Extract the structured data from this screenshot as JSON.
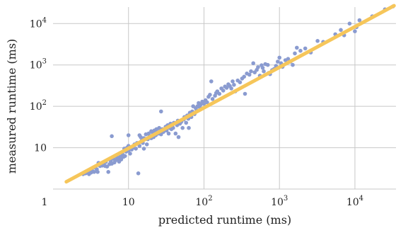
{
  "chart_data": {
    "type": "scatter",
    "xlabel": "predicted runtime (ms)",
    "ylabel": "measured runtime (ms)",
    "xscale": "log",
    "yscale": "log",
    "xlim": [
      1,
      35000
    ],
    "ylim": [
      1,
      25000
    ],
    "grid": true,
    "colors": {
      "points": "#8a9bd0",
      "fit_line": "#f6c65a",
      "grid": "#c8c8c8"
    },
    "x_ticks": [
      {
        "label": "1",
        "value": 1
      },
      {
        "label": "10",
        "value": 10
      },
      {
        "label": "10",
        "sup": "2",
        "value": 100
      },
      {
        "label": "10",
        "sup": "3",
        "value": 1000
      },
      {
        "label": "10",
        "sup": "4",
        "value": 10000
      }
    ],
    "y_ticks": [
      {
        "label": "10",
        "sup": "",
        "value": 10
      },
      {
        "label": "10",
        "sup": "2",
        "value": 100
      },
      {
        "label": "10",
        "sup": "3",
        "value": 1000
      },
      {
        "label": "10",
        "sup": "4",
        "value": 10000
      }
    ],
    "fit_line": {
      "x": [
        1.5,
        33000
      ],
      "y": [
        1.5,
        27000
      ]
    },
    "series": [
      {
        "points": [
          [
            2.5,
            2.3
          ],
          [
            2.7,
            2.4
          ],
          [
            2.9,
            2.6
          ],
          [
            3.0,
            2.3
          ],
          [
            3.2,
            2.5
          ],
          [
            3.3,
            2.8
          ],
          [
            3.5,
            2.6
          ],
          [
            3.6,
            3.3
          ],
          [
            3.8,
            3.0
          ],
          [
            3.9,
            2.6
          ],
          [
            4.0,
            4.3
          ],
          [
            4.2,
            3.6
          ],
          [
            4.3,
            4.0
          ],
          [
            4.5,
            3.7
          ],
          [
            4.7,
            4.1
          ],
          [
            4.9,
            3.6
          ],
          [
            5.0,
            4.5
          ],
          [
            5.2,
            3.5
          ],
          [
            5.4,
            2.6
          ],
          [
            5.6,
            4.0
          ],
          [
            5.8,
            4.8
          ],
          [
            6.0,
            4.1
          ],
          [
            6.0,
            19
          ],
          [
            6.3,
            5.4
          ],
          [
            6.5,
            4.4
          ],
          [
            6.8,
            5.0
          ],
          [
            7.0,
            6.0
          ],
          [
            7.3,
            5.2
          ],
          [
            7.5,
            4.6
          ],
          [
            7.8,
            6.0
          ],
          [
            8.0,
            5.2
          ],
          [
            8.3,
            7.0
          ],
          [
            8.6,
            6.0
          ],
          [
            8.8,
            9.5
          ],
          [
            9.0,
            6.3
          ],
          [
            9.3,
            8.0
          ],
          [
            9.6,
            10
          ],
          [
            10,
            8.5
          ],
          [
            10,
            20
          ],
          [
            10,
            11
          ],
          [
            10.5,
            7.2
          ],
          [
            11,
            9.0
          ],
          [
            11.5,
            10
          ],
          [
            12,
            12
          ],
          [
            12.5,
            9.5
          ],
          [
            13,
            13
          ],
          [
            13.5,
            2.4
          ],
          [
            14,
            11
          ],
          [
            14,
            20
          ],
          [
            14.5,
            18
          ],
          [
            15,
            15
          ],
          [
            15.5,
            13
          ],
          [
            16,
            17
          ],
          [
            16,
            9.5
          ],
          [
            17,
            21
          ],
          [
            17.5,
            12
          ],
          [
            18,
            16
          ],
          [
            18.5,
            22
          ],
          [
            19,
            19
          ],
          [
            20,
            17
          ],
          [
            20,
            25
          ],
          [
            21,
            22
          ],
          [
            21.5,
            18
          ],
          [
            22,
            26
          ],
          [
            23,
            20
          ],
          [
            23.5,
            28
          ],
          [
            24,
            23
          ],
          [
            25,
            22
          ],
          [
            25.5,
            30
          ],
          [
            26,
            25
          ],
          [
            27,
            21
          ],
          [
            27,
            75
          ],
          [
            28,
            28
          ],
          [
            29,
            24
          ],
          [
            30,
            27
          ],
          [
            31,
            32
          ],
          [
            32,
            26
          ],
          [
            33,
            35
          ],
          [
            34,
            22
          ],
          [
            35,
            30
          ],
          [
            36,
            38
          ],
          [
            37,
            28
          ],
          [
            38,
            33
          ],
          [
            39,
            30
          ],
          [
            40,
            40
          ],
          [
            42,
            22
          ],
          [
            44,
            35
          ],
          [
            45,
            45
          ],
          [
            46,
            18
          ],
          [
            48,
            38
          ],
          [
            50,
            42
          ],
          [
            52,
            30
          ],
          [
            54,
            48
          ],
          [
            55,
            55
          ],
          [
            58,
            40
          ],
          [
            60,
            60
          ],
          [
            62,
            50
          ],
          [
            63,
            30
          ],
          [
            65,
            70
          ],
          [
            68,
            55
          ],
          [
            70,
            75
          ],
          [
            72,
            100
          ],
          [
            75,
            65
          ],
          [
            78,
            90
          ],
          [
            80,
            80
          ],
          [
            82,
            100
          ],
          [
            85,
            120
          ],
          [
            88,
            95
          ],
          [
            90,
            110
          ],
          [
            95,
            130
          ],
          [
            100,
            115
          ],
          [
            105,
            140
          ],
          [
            110,
            125
          ],
          [
            115,
            170
          ],
          [
            120,
            190
          ],
          [
            125,
            400
          ],
          [
            130,
            150
          ],
          [
            140,
            180
          ],
          [
            145,
            210
          ],
          [
            150,
            230
          ],
          [
            160,
            200
          ],
          [
            170,
            270
          ],
          [
            180,
            240
          ],
          [
            190,
            300
          ],
          [
            200,
            280
          ],
          [
            210,
            340
          ],
          [
            220,
            310
          ],
          [
            230,
            270
          ],
          [
            240,
            400
          ],
          [
            250,
            330
          ],
          [
            260,
            230
          ],
          [
            280,
            420
          ],
          [
            300,
            380
          ],
          [
            320,
            470
          ],
          [
            340,
            520
          ],
          [
            350,
            200
          ],
          [
            370,
            620
          ],
          [
            400,
            580
          ],
          [
            420,
            700
          ],
          [
            450,
            1100
          ],
          [
            470,
            660
          ],
          [
            500,
            760
          ],
          [
            520,
            880
          ],
          [
            550,
            550
          ],
          [
            580,
            980
          ],
          [
            600,
            850
          ],
          [
            620,
            700
          ],
          [
            650,
            1050
          ],
          [
            700,
            1000
          ],
          [
            720,
            640
          ],
          [
            750,
            600
          ],
          [
            800,
            750
          ],
          [
            850,
            800
          ],
          [
            900,
            950
          ],
          [
            950,
            1200
          ],
          [
            1000,
            1500
          ],
          [
            1050,
            1100
          ],
          [
            1100,
            900
          ],
          [
            1200,
            1300
          ],
          [
            1300,
            1400
          ],
          [
            1400,
            1200
          ],
          [
            1500,
            1000
          ],
          [
            1600,
            1900
          ],
          [
            1700,
            2600
          ],
          [
            1900,
            2200
          ],
          [
            2200,
            2500
          ],
          [
            2600,
            2000
          ],
          [
            3200,
            3800
          ],
          [
            3800,
            3600
          ],
          [
            5500,
            5500
          ],
          [
            6500,
            7000
          ],
          [
            7200,
            5200
          ],
          [
            8500,
            10000
          ],
          [
            10000,
            6500
          ],
          [
            10500,
            8200
          ],
          [
            11500,
            12000
          ],
          [
            17000,
            15000
          ],
          [
            25000,
            22000
          ],
          [
            32000,
            26000
          ]
        ]
      }
    ]
  }
}
